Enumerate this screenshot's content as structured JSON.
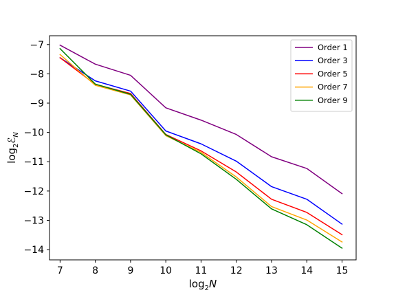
{
  "chart_data": {
    "type": "line",
    "x": [
      7,
      8,
      9,
      10,
      11,
      12,
      13,
      14,
      15
    ],
    "xticks": [
      7,
      8,
      9,
      10,
      11,
      12,
      13,
      14,
      15
    ],
    "xlim": [
      6.7,
      15.4
    ],
    "xlabel_prefix": "log",
    "xlabel_sub": "2",
    "xlabel_var": "N",
    "yticks": [
      -7,
      -8,
      -9,
      -10,
      -11,
      -12,
      -13,
      -14
    ],
    "ytick_labels": [
      "−7",
      "−8",
      "−9",
      "−10",
      "−11",
      "−12",
      "−13",
      "−14"
    ],
    "ylim": [
      -14.35,
      -6.7
    ],
    "ylabel_prefix": "log",
    "ylabel_sub": "2",
    "ylabel_var": "ℰ",
    "ylabel_var_sub": "N",
    "grid": false,
    "legend_position": "top-right",
    "series": [
      {
        "name": "Order 1",
        "color": "#800080",
        "values": [
          -7.02,
          -7.67,
          -8.05,
          -9.16,
          -9.58,
          -10.07,
          -10.83,
          -11.23,
          -12.09
        ]
      },
      {
        "name": "Order 3",
        "color": "#0000ff",
        "values": [
          -7.45,
          -8.24,
          -8.59,
          -9.95,
          -10.39,
          -10.98,
          -11.85,
          -12.28,
          -13.13
        ]
      },
      {
        "name": "Order 5",
        "color": "#ff0000",
        "values": [
          -7.45,
          -8.36,
          -8.67,
          -10.07,
          -10.63,
          -11.35,
          -12.28,
          -12.73,
          -13.49
        ]
      },
      {
        "name": "Order 7",
        "color": "#ffa500",
        "values": [
          -7.34,
          -8.39,
          -8.72,
          -10.11,
          -10.68,
          -11.52,
          -12.53,
          -12.99,
          -13.74
        ]
      },
      {
        "name": "Order 9",
        "color": "#008000",
        "values": [
          -7.14,
          -8.35,
          -8.7,
          -10.08,
          -10.73,
          -11.6,
          -12.61,
          -13.15,
          -13.95
        ]
      }
    ]
  }
}
